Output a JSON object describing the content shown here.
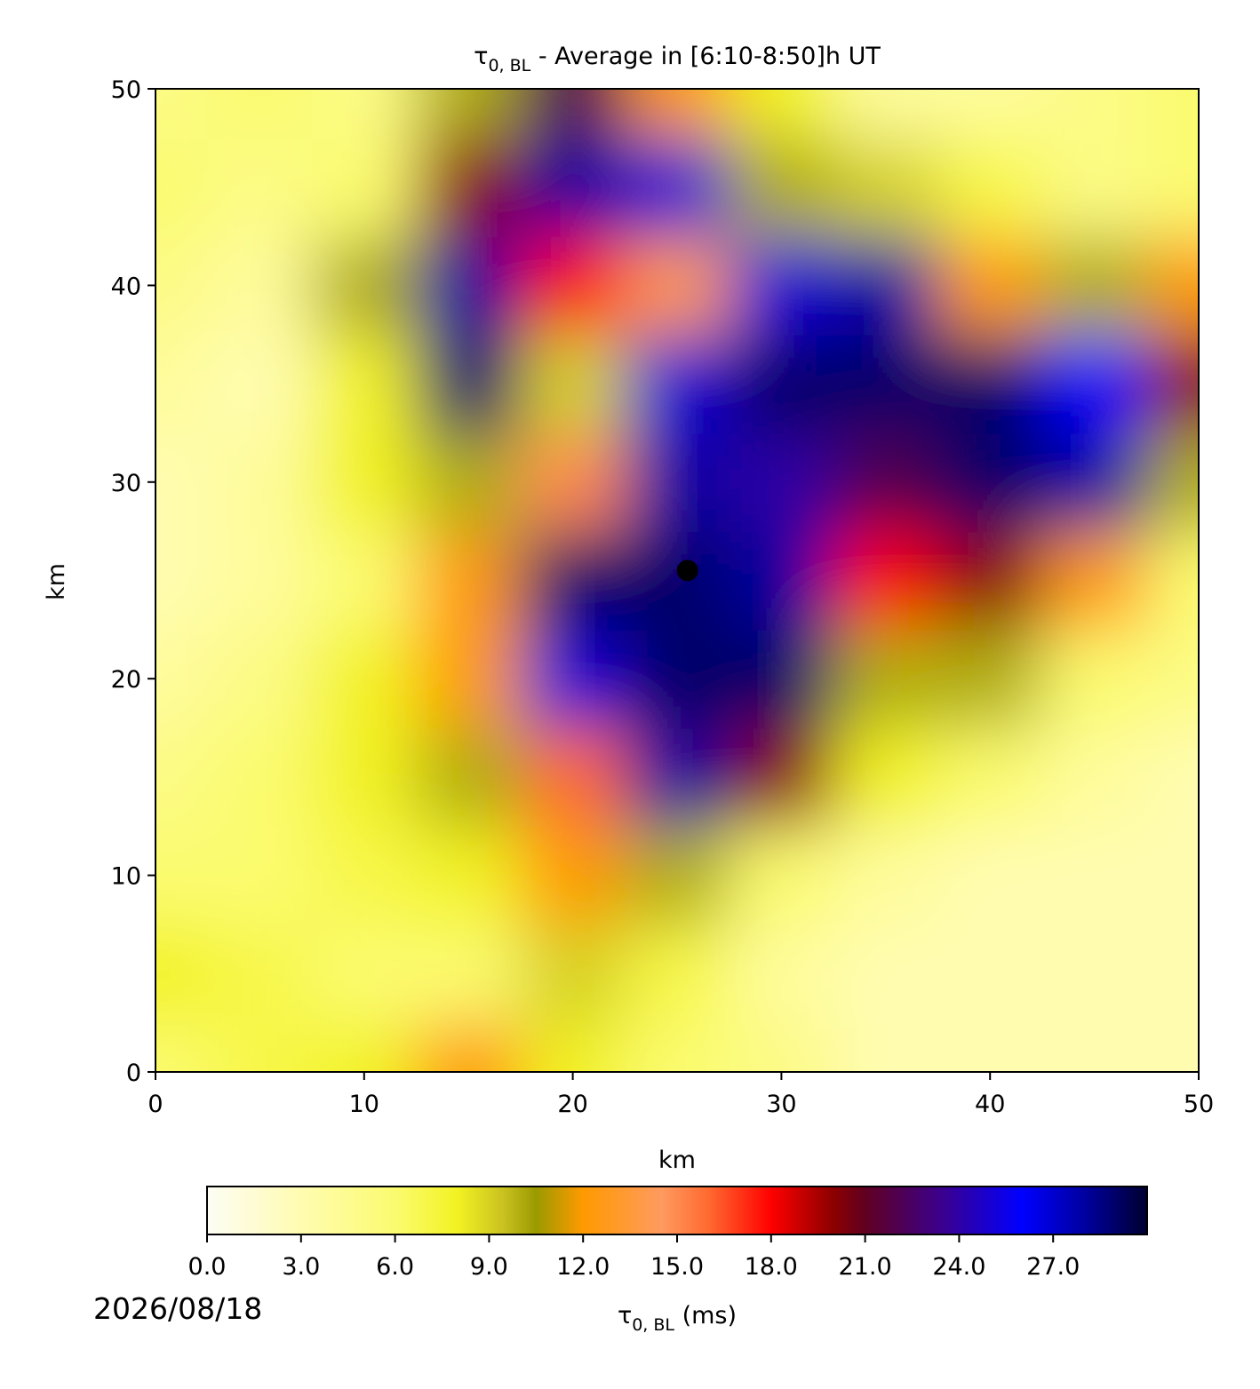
{
  "chart_data": {
    "type": "heatmap",
    "title": {
      "symbol": "τ",
      "subscript": "0, BL",
      "text": " - Average in [6:10-8:50]h UT"
    },
    "x_label": "km",
    "y_label": "km",
    "x": [
      0,
      5,
      10,
      15,
      20,
      25,
      30,
      35,
      40,
      45,
      50
    ],
    "y": [
      0,
      5,
      10,
      15,
      20,
      25,
      30,
      35,
      40,
      45,
      50
    ],
    "z": [
      [
        6,
        7,
        8,
        12,
        8,
        6,
        5,
        3,
        3,
        3,
        3
      ],
      [
        8,
        7,
        6,
        6,
        9,
        7,
        4,
        3,
        3,
        3,
        3
      ],
      [
        6,
        6,
        7,
        8,
        12,
        10,
        6,
        4,
        3,
        3,
        3
      ],
      [
        5,
        6,
        8,
        10,
        16,
        28,
        20,
        8,
        6,
        4,
        3
      ],
      [
        4,
        5,
        8,
        12,
        25,
        29,
        29,
        10,
        10,
        6,
        5
      ],
      [
        3,
        4,
        6,
        12,
        29,
        29,
        28,
        18,
        20,
        12,
        6
      ],
      [
        3,
        4,
        8,
        10,
        15,
        28,
        24,
        22,
        29,
        28,
        10
      ],
      [
        4,
        3,
        8,
        29,
        9,
        25,
        29,
        29,
        29,
        26,
        20
      ],
      [
        5,
        4,
        10,
        28,
        18,
        14,
        25,
        28,
        12,
        10,
        12
      ],
      [
        6,
        5,
        6,
        20,
        28,
        25,
        10,
        9,
        7,
        5,
        6
      ],
      [
        5,
        6,
        5,
        10,
        22,
        12,
        8,
        4,
        4,
        5,
        6
      ]
    ],
    "point": {
      "x": 25.5,
      "y": 25.5,
      "color": "#000000"
    },
    "xlim": [
      0,
      50
    ],
    "ylim": [
      0,
      50
    ],
    "xticks": [
      0,
      10,
      20,
      30,
      40,
      50
    ],
    "yticks": [
      0,
      10,
      20,
      30,
      40,
      50
    ],
    "clim": [
      0,
      30
    ],
    "colorscale": [
      {
        "value": 0,
        "color": "#fdfdf5"
      },
      {
        "value": 3,
        "color": "#fffcb0"
      },
      {
        "value": 6,
        "color": "#fbfb70"
      },
      {
        "value": 8,
        "color": "#f2f222"
      },
      {
        "value": 9.5,
        "color": "#c8c020"
      },
      {
        "value": 10.5,
        "color": "#9a9a00"
      },
      {
        "value": 12,
        "color": "#ff9a00"
      },
      {
        "value": 14.5,
        "color": "#ff9a60"
      },
      {
        "value": 16,
        "color": "#ff6a30"
      },
      {
        "value": 18,
        "color": "#ff0000"
      },
      {
        "value": 20,
        "color": "#8b0000"
      },
      {
        "value": 21,
        "color": "#600020"
      },
      {
        "value": 23.5,
        "color": "#3a0090"
      },
      {
        "value": 26,
        "color": "#0000ff"
      },
      {
        "value": 28,
        "color": "#0000a0"
      },
      {
        "value": 30,
        "color": "#000030"
      }
    ],
    "cticks": [
      {
        "value": 0,
        "label": "0.0"
      },
      {
        "value": 3,
        "label": "3.0"
      },
      {
        "value": 6,
        "label": "6.0"
      },
      {
        "value": 9,
        "label": "9.0"
      },
      {
        "value": 12,
        "label": "12.0"
      },
      {
        "value": 15,
        "label": "15.0"
      },
      {
        "value": 18,
        "label": "18.0"
      },
      {
        "value": 21,
        "label": "21.0"
      },
      {
        "value": 24,
        "label": "24.0"
      },
      {
        "value": 27,
        "label": "27.0"
      }
    ],
    "colorbar_label": {
      "symbol": "τ",
      "subscript": "0, BL",
      "text": " (ms)"
    },
    "date": "2026/08/18"
  }
}
